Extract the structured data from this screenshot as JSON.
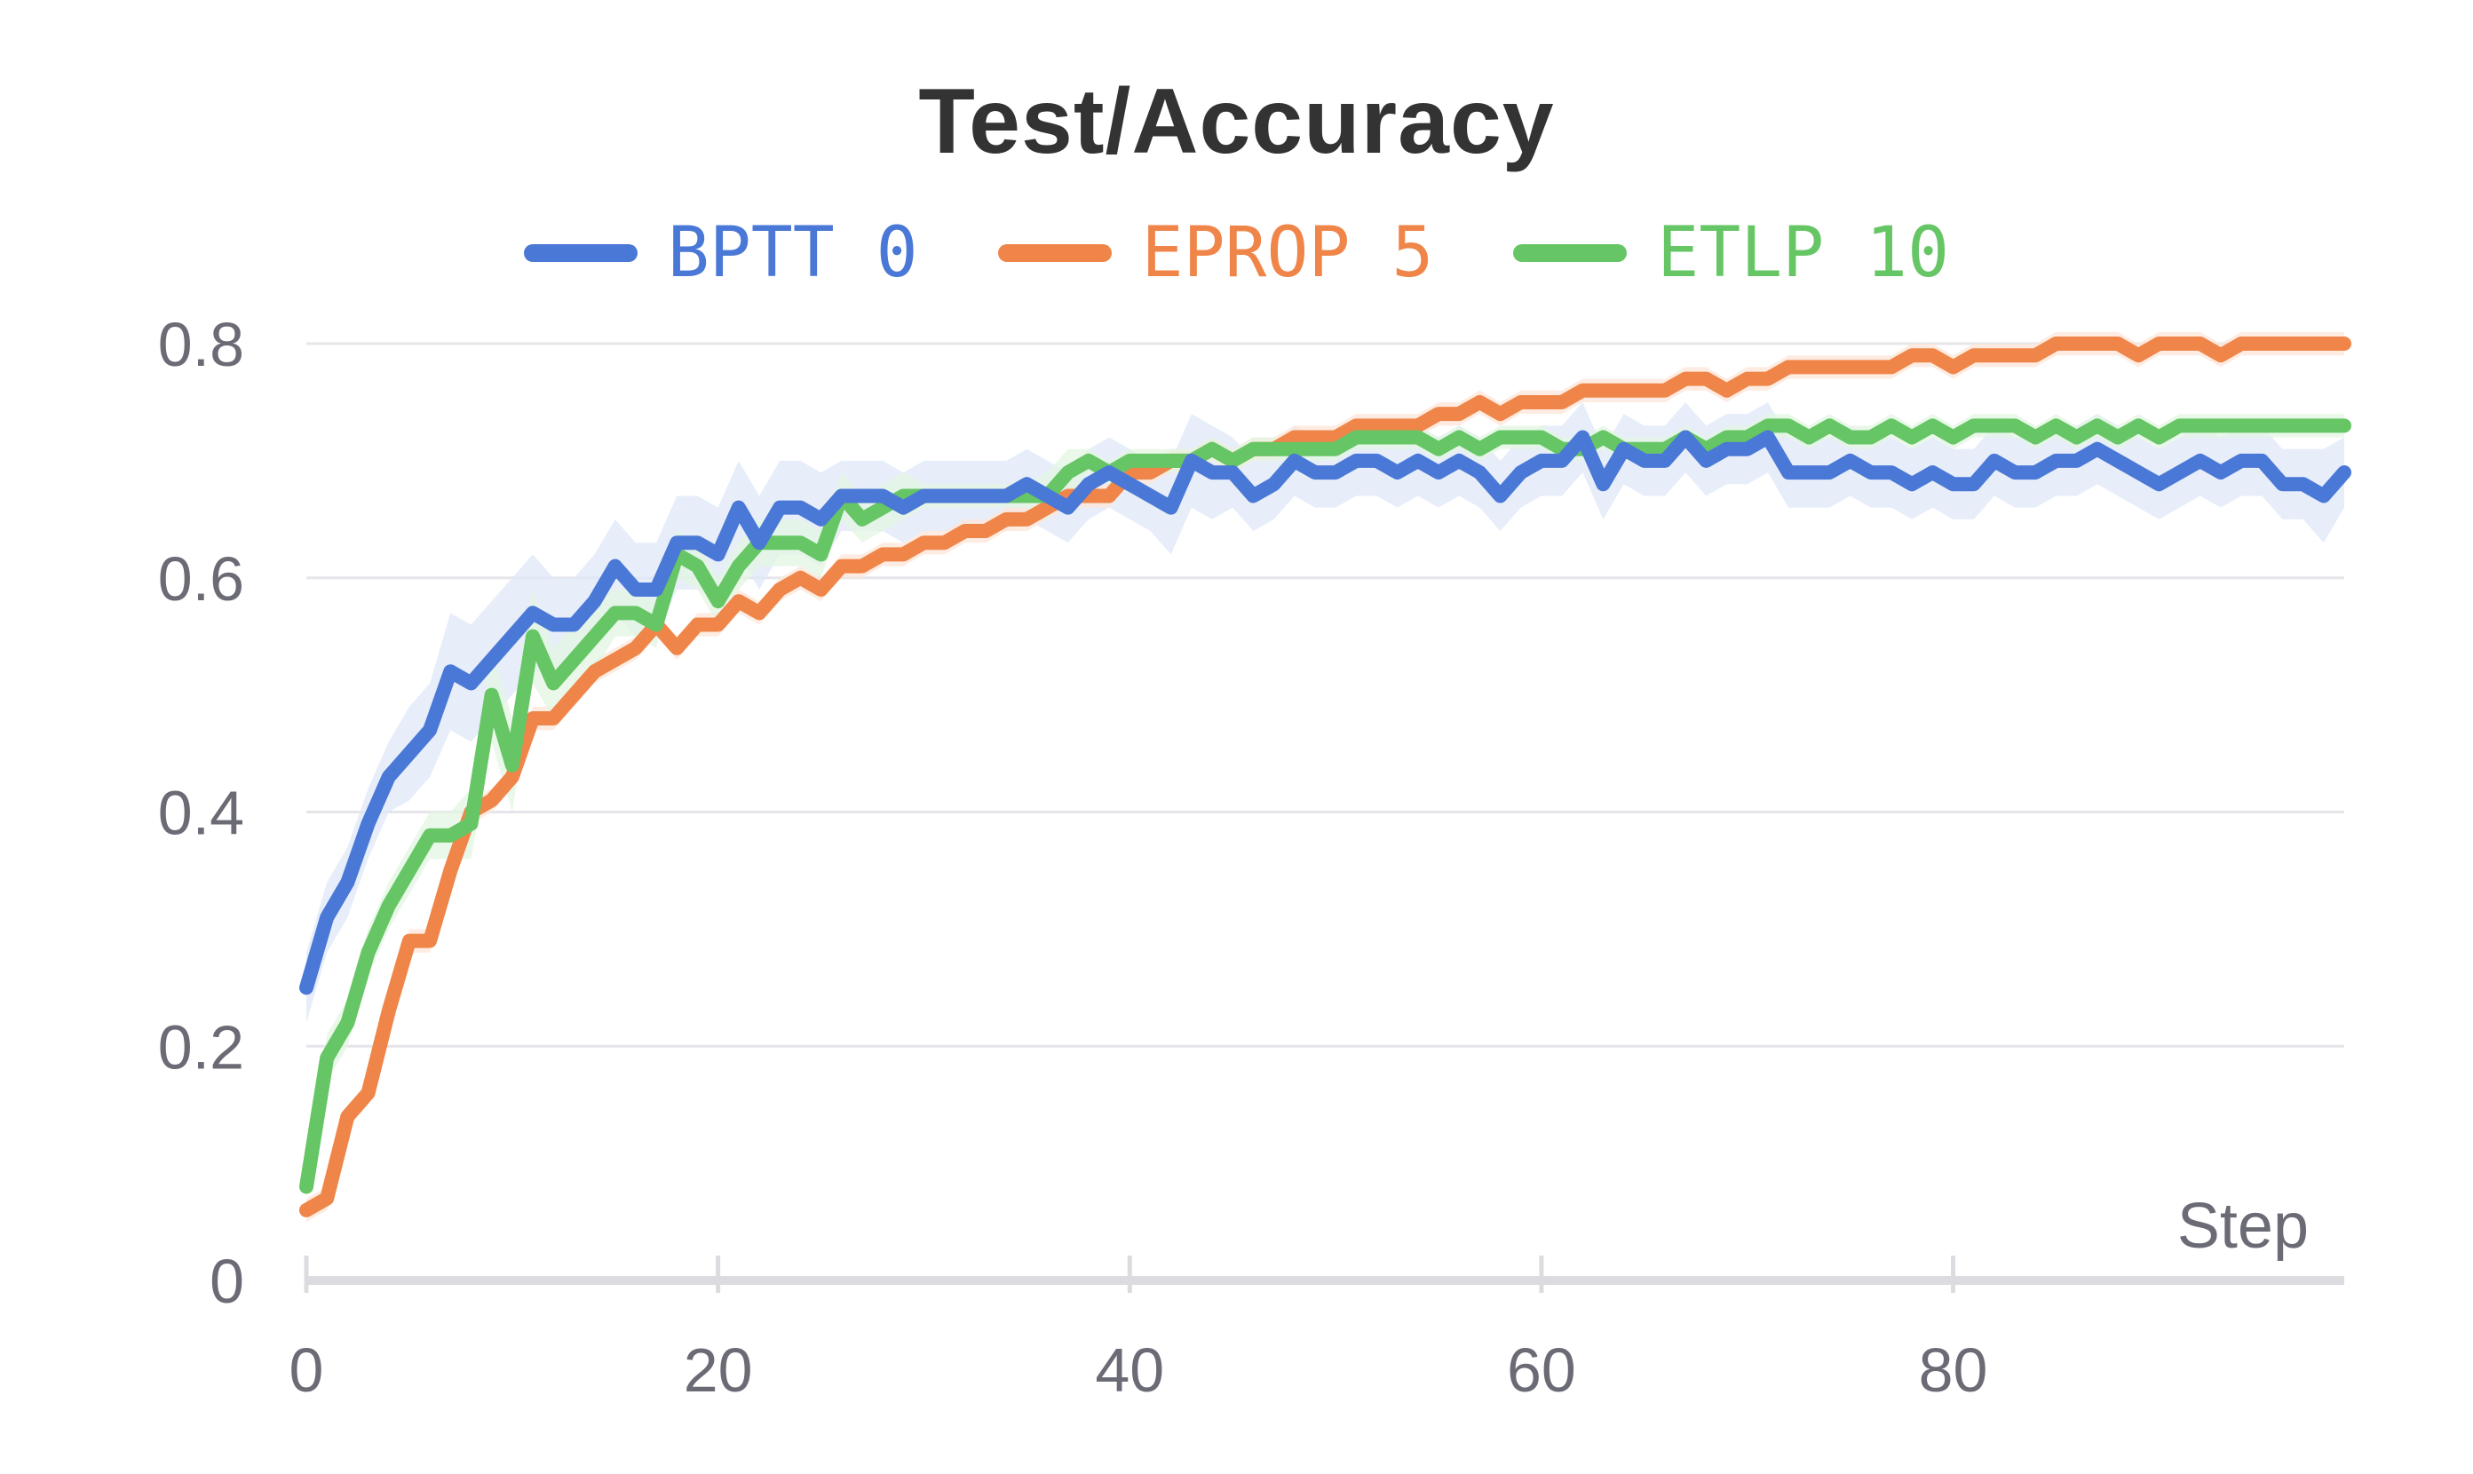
{
  "chart_data": {
    "type": "line",
    "title": "Test/Accuracy",
    "xlabel": "Step",
    "ylabel": "",
    "xlim": [
      0,
      99
    ],
    "ylim": [
      0,
      0.8
    ],
    "x_ticks": [
      "0",
      "20",
      "40",
      "60",
      "80"
    ],
    "y_ticks": [
      "0",
      "0.2",
      "0.4",
      "0.6",
      "0.8"
    ],
    "grid": true,
    "legend_position": "top",
    "series": [
      {
        "name": "BPTT 0",
        "color": "#4a78d6",
        "band_color": "#dfe8f8",
        "values": [
          0.25,
          0.31,
          0.34,
          0.39,
          0.43,
          0.45,
          0.47,
          0.52,
          0.51,
          0.53,
          0.55,
          0.57,
          0.56,
          0.56,
          0.58,
          0.61,
          0.59,
          0.59,
          0.63,
          0.63,
          0.62,
          0.66,
          0.63,
          0.66,
          0.66,
          0.65,
          0.67,
          0.67,
          0.67,
          0.66,
          0.67,
          0.67,
          0.67,
          0.67,
          0.67,
          0.68,
          0.67,
          0.66,
          0.68,
          0.69,
          0.68,
          0.67,
          0.66,
          0.7,
          0.69,
          0.69,
          0.67,
          0.68,
          0.7,
          0.69,
          0.69,
          0.7,
          0.7,
          0.69,
          0.7,
          0.69,
          0.7,
          0.69,
          0.67,
          0.69,
          0.7,
          0.7,
          0.72,
          0.68,
          0.71,
          0.7,
          0.7,
          0.72,
          0.7,
          0.71,
          0.71,
          0.72,
          0.69,
          0.69,
          0.69,
          0.7,
          0.69,
          0.69,
          0.68,
          0.69,
          0.68,
          0.68,
          0.7,
          0.69,
          0.69,
          0.7,
          0.7,
          0.71,
          0.7,
          0.69,
          0.68,
          0.69,
          0.7,
          0.69,
          0.7,
          0.7,
          0.68,
          0.68,
          0.67,
          0.69
        ],
        "band_width": [
          0.03,
          0.03,
          0.03,
          0.03,
          0.03,
          0.04,
          0.04,
          0.05,
          0.05,
          0.05,
          0.05,
          0.05,
          0.04,
          0.04,
          0.04,
          0.04,
          0.04,
          0.04,
          0.04,
          0.04,
          0.04,
          0.04,
          0.04,
          0.04,
          0.04,
          0.04,
          0.03,
          0.03,
          0.03,
          0.03,
          0.03,
          0.03,
          0.03,
          0.03,
          0.03,
          0.03,
          0.03,
          0.03,
          0.03,
          0.03,
          0.03,
          0.03,
          0.04,
          0.04,
          0.04,
          0.03,
          0.03,
          0.03,
          0.03,
          0.03,
          0.03,
          0.03,
          0.03,
          0.03,
          0.03,
          0.03,
          0.03,
          0.03,
          0.03,
          0.03,
          0.03,
          0.03,
          0.03,
          0.03,
          0.03,
          0.03,
          0.03,
          0.03,
          0.03,
          0.03,
          0.03,
          0.03,
          0.03,
          0.03,
          0.03,
          0.03,
          0.03,
          0.03,
          0.03,
          0.03,
          0.03,
          0.03,
          0.03,
          0.03,
          0.03,
          0.03,
          0.03,
          0.03,
          0.03,
          0.03,
          0.03,
          0.03,
          0.03,
          0.03,
          0.03,
          0.03,
          0.03,
          0.03,
          0.04,
          0.03
        ]
      },
      {
        "name": "EPROP 5",
        "color": "#ef8548",
        "band_color": "#fde6d8",
        "values": [
          0.06,
          0.07,
          0.14,
          0.16,
          0.23,
          0.29,
          0.29,
          0.35,
          0.4,
          0.41,
          0.43,
          0.48,
          0.48,
          0.5,
          0.52,
          0.53,
          0.54,
          0.56,
          0.54,
          0.56,
          0.56,
          0.58,
          0.57,
          0.59,
          0.6,
          0.59,
          0.61,
          0.61,
          0.62,
          0.62,
          0.63,
          0.63,
          0.64,
          0.64,
          0.65,
          0.65,
          0.66,
          0.67,
          0.67,
          0.67,
          0.69,
          0.69,
          0.7,
          0.7,
          0.71,
          0.7,
          0.71,
          0.71,
          0.72,
          0.72,
          0.72,
          0.73,
          0.73,
          0.73,
          0.73,
          0.74,
          0.74,
          0.75,
          0.74,
          0.75,
          0.75,
          0.75,
          0.76,
          0.76,
          0.76,
          0.76,
          0.76,
          0.77,
          0.77,
          0.76,
          0.77,
          0.77,
          0.78,
          0.78,
          0.78,
          0.78,
          0.78,
          0.78,
          0.79,
          0.79,
          0.78,
          0.79,
          0.79,
          0.79,
          0.79,
          0.8,
          0.8,
          0.8,
          0.8,
          0.79,
          0.8,
          0.8,
          0.8,
          0.79,
          0.8,
          0.8,
          0.8,
          0.8,
          0.8,
          0.8
        ],
        "band_width": [
          0.01,
          0.01,
          0.01,
          0.01,
          0.01,
          0.01,
          0.01,
          0.01,
          0.01,
          0.01,
          0.01,
          0.01,
          0.01,
          0.01,
          0.01,
          0.01,
          0.01,
          0.01,
          0.01,
          0.01,
          0.01,
          0.01,
          0.01,
          0.01,
          0.01,
          0.01,
          0.01,
          0.01,
          0.01,
          0.01,
          0.01,
          0.01,
          0.01,
          0.01,
          0.01,
          0.01,
          0.01,
          0.01,
          0.01,
          0.01,
          0.01,
          0.01,
          0.01,
          0.01,
          0.01,
          0.01,
          0.01,
          0.01,
          0.01,
          0.01,
          0.01,
          0.01,
          0.01,
          0.01,
          0.01,
          0.01,
          0.01,
          0.01,
          0.01,
          0.01,
          0.01,
          0.01,
          0.01,
          0.01,
          0.01,
          0.01,
          0.01,
          0.01,
          0.01,
          0.01,
          0.01,
          0.01,
          0.01,
          0.01,
          0.01,
          0.01,
          0.01,
          0.01,
          0.01,
          0.01,
          0.01,
          0.01,
          0.01,
          0.01,
          0.01,
          0.01,
          0.01,
          0.01,
          0.01,
          0.01,
          0.01,
          0.01,
          0.01,
          0.01,
          0.01,
          0.01,
          0.01,
          0.01,
          0.01,
          0.01
        ]
      },
      {
        "name": "ETLP 10",
        "color": "#66c665",
        "band_color": "#e3f5e1",
        "values": [
          0.08,
          0.19,
          0.22,
          0.28,
          0.32,
          0.35,
          0.38,
          0.38,
          0.39,
          0.5,
          0.44,
          0.55,
          0.51,
          0.53,
          0.55,
          0.57,
          0.57,
          0.56,
          0.62,
          0.61,
          0.58,
          0.61,
          0.63,
          0.63,
          0.63,
          0.62,
          0.67,
          0.65,
          0.66,
          0.67,
          0.67,
          0.67,
          0.67,
          0.67,
          0.67,
          0.67,
          0.67,
          0.69,
          0.7,
          0.69,
          0.7,
          0.7,
          0.7,
          0.7,
          0.71,
          0.7,
          0.71,
          0.71,
          0.71,
          0.71,
          0.71,
          0.72,
          0.72,
          0.72,
          0.72,
          0.71,
          0.72,
          0.71,
          0.72,
          0.72,
          0.72,
          0.71,
          0.71,
          0.72,
          0.71,
          0.71,
          0.71,
          0.72,
          0.71,
          0.72,
          0.72,
          0.73,
          0.73,
          0.72,
          0.73,
          0.72,
          0.72,
          0.73,
          0.72,
          0.73,
          0.72,
          0.73,
          0.73,
          0.73,
          0.72,
          0.73,
          0.72,
          0.73,
          0.72,
          0.73,
          0.72,
          0.73,
          0.73,
          0.73,
          0.73,
          0.73,
          0.73,
          0.73,
          0.73,
          0.73
        ],
        "band_width": [
          0.01,
          0.02,
          0.02,
          0.02,
          0.02,
          0.02,
          0.02,
          0.02,
          0.03,
          0.04,
          0.04,
          0.04,
          0.03,
          0.03,
          0.03,
          0.02,
          0.02,
          0.02,
          0.02,
          0.02,
          0.02,
          0.02,
          0.02,
          0.02,
          0.02,
          0.02,
          0.02,
          0.02,
          0.02,
          0.02,
          0.01,
          0.01,
          0.01,
          0.01,
          0.01,
          0.01,
          0.02,
          0.02,
          0.01,
          0.01,
          0.01,
          0.01,
          0.01,
          0.01,
          0.01,
          0.01,
          0.01,
          0.01,
          0.01,
          0.01,
          0.01,
          0.01,
          0.01,
          0.01,
          0.01,
          0.01,
          0.01,
          0.01,
          0.01,
          0.01,
          0.01,
          0.01,
          0.01,
          0.01,
          0.01,
          0.01,
          0.01,
          0.01,
          0.01,
          0.01,
          0.01,
          0.01,
          0.01,
          0.01,
          0.01,
          0.01,
          0.01,
          0.01,
          0.01,
          0.01,
          0.01,
          0.01,
          0.01,
          0.01,
          0.01,
          0.01,
          0.01,
          0.01,
          0.01,
          0.01,
          0.01,
          0.01,
          0.01,
          0.01,
          0.01,
          0.01,
          0.01,
          0.01,
          0.01,
          0.01
        ]
      }
    ]
  }
}
